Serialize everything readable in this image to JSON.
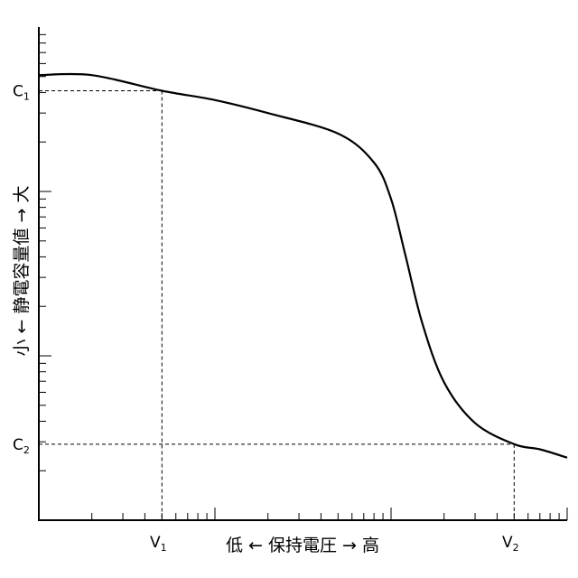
{
  "chart_data": {
    "type": "line",
    "xlabel": "低 ← 保持電圧 → 高",
    "ylabel": "小 ← 静電容量値 → 大",
    "x_scale": "log",
    "y_scale": "log",
    "xlim": [
      0.1,
      100
    ],
    "ylim": [
      0.01,
      10
    ],
    "grid": false,
    "legend": "none",
    "series": [
      {
        "x": [
          0.1,
          0.2,
          0.5,
          1,
          2,
          5,
          8,
          10,
          12,
          15,
          20,
          30,
          50,
          70,
          100
        ],
        "y": [
          5.1,
          5.1,
          4.1,
          3.6,
          3.0,
          2.25,
          1.5,
          0.9,
          0.42,
          0.16,
          0.069,
          0.039,
          0.029,
          0.027,
          0.024
        ]
      }
    ],
    "reference_points": [
      {
        "x": 0.5,
        "y": 4.1,
        "x_label": "V",
        "x_sub": "1",
        "y_label": "C",
        "y_sub": "1"
      },
      {
        "x": 50,
        "y": 0.029,
        "x_label": "V",
        "x_sub": "2",
        "y_label": "C",
        "y_sub": "2"
      }
    ]
  }
}
